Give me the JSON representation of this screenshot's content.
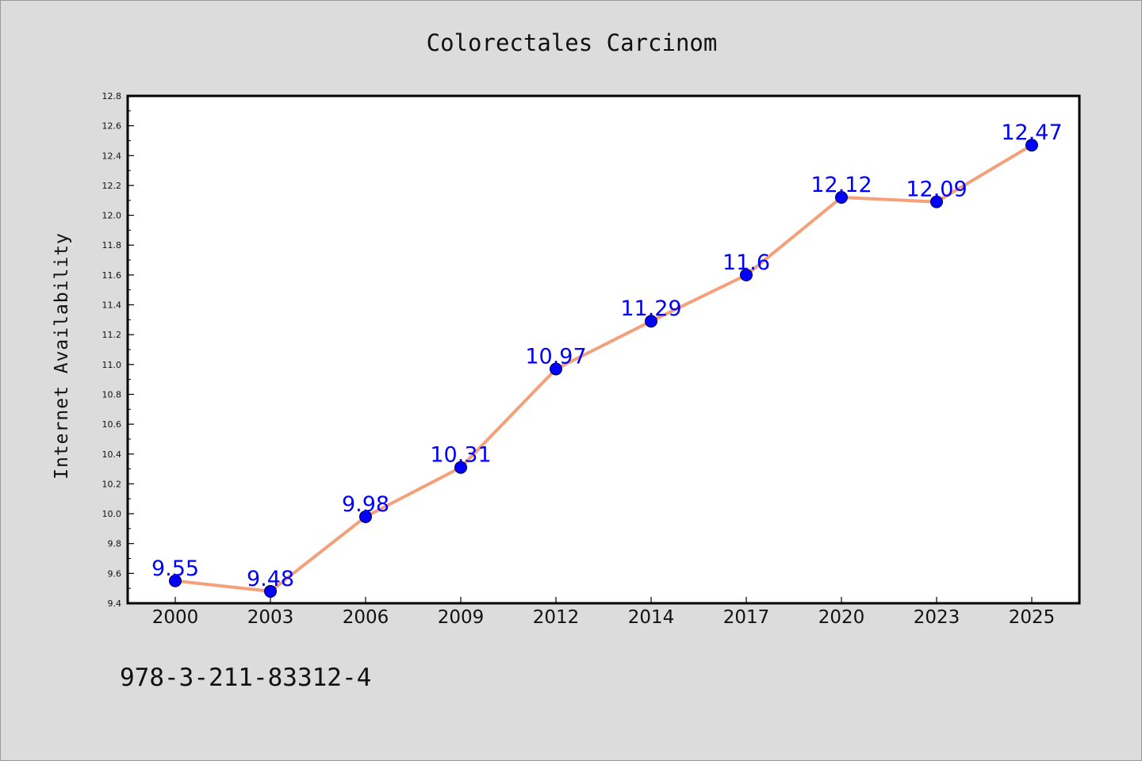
{
  "chart_data": {
    "type": "line",
    "title": "Colorectales Carcinom",
    "xlabel": "",
    "ylabel": "Internet Availability",
    "categories": [
      "2000",
      "2003",
      "2006",
      "2009",
      "2012",
      "2014",
      "2017",
      "2020",
      "2023",
      "2025"
    ],
    "series": [
      {
        "values": [
          9.55,
          9.48,
          9.98,
          10.31,
          10.97,
          11.29,
          11.6,
          12.12,
          12.09,
          12.47
        ],
        "data_labels": [
          "9.55",
          "9.48",
          "9.98",
          "10.31",
          "10.97",
          "11.29",
          "11.6",
          "12.12",
          "12.09",
          "12.47"
        ],
        "line_color": "#f4a07a",
        "marker_color": "#0000ff"
      }
    ],
    "ylim": [
      9.4,
      12.8
    ],
    "yticks": [
      "9.4",
      "9.6",
      "9.8",
      "10.0",
      "10.2",
      "10.4",
      "10.6",
      "10.8",
      "11.0",
      "11.2",
      "11.4",
      "11.6",
      "11.8",
      "12.0",
      "12.2",
      "12.4",
      "12.6",
      "12.8"
    ],
    "grid": false,
    "legend": "none",
    "plot_background": "#ffffff",
    "figure_background": "#dcdcdc"
  },
  "footnote": "978-3-211-83312-4"
}
